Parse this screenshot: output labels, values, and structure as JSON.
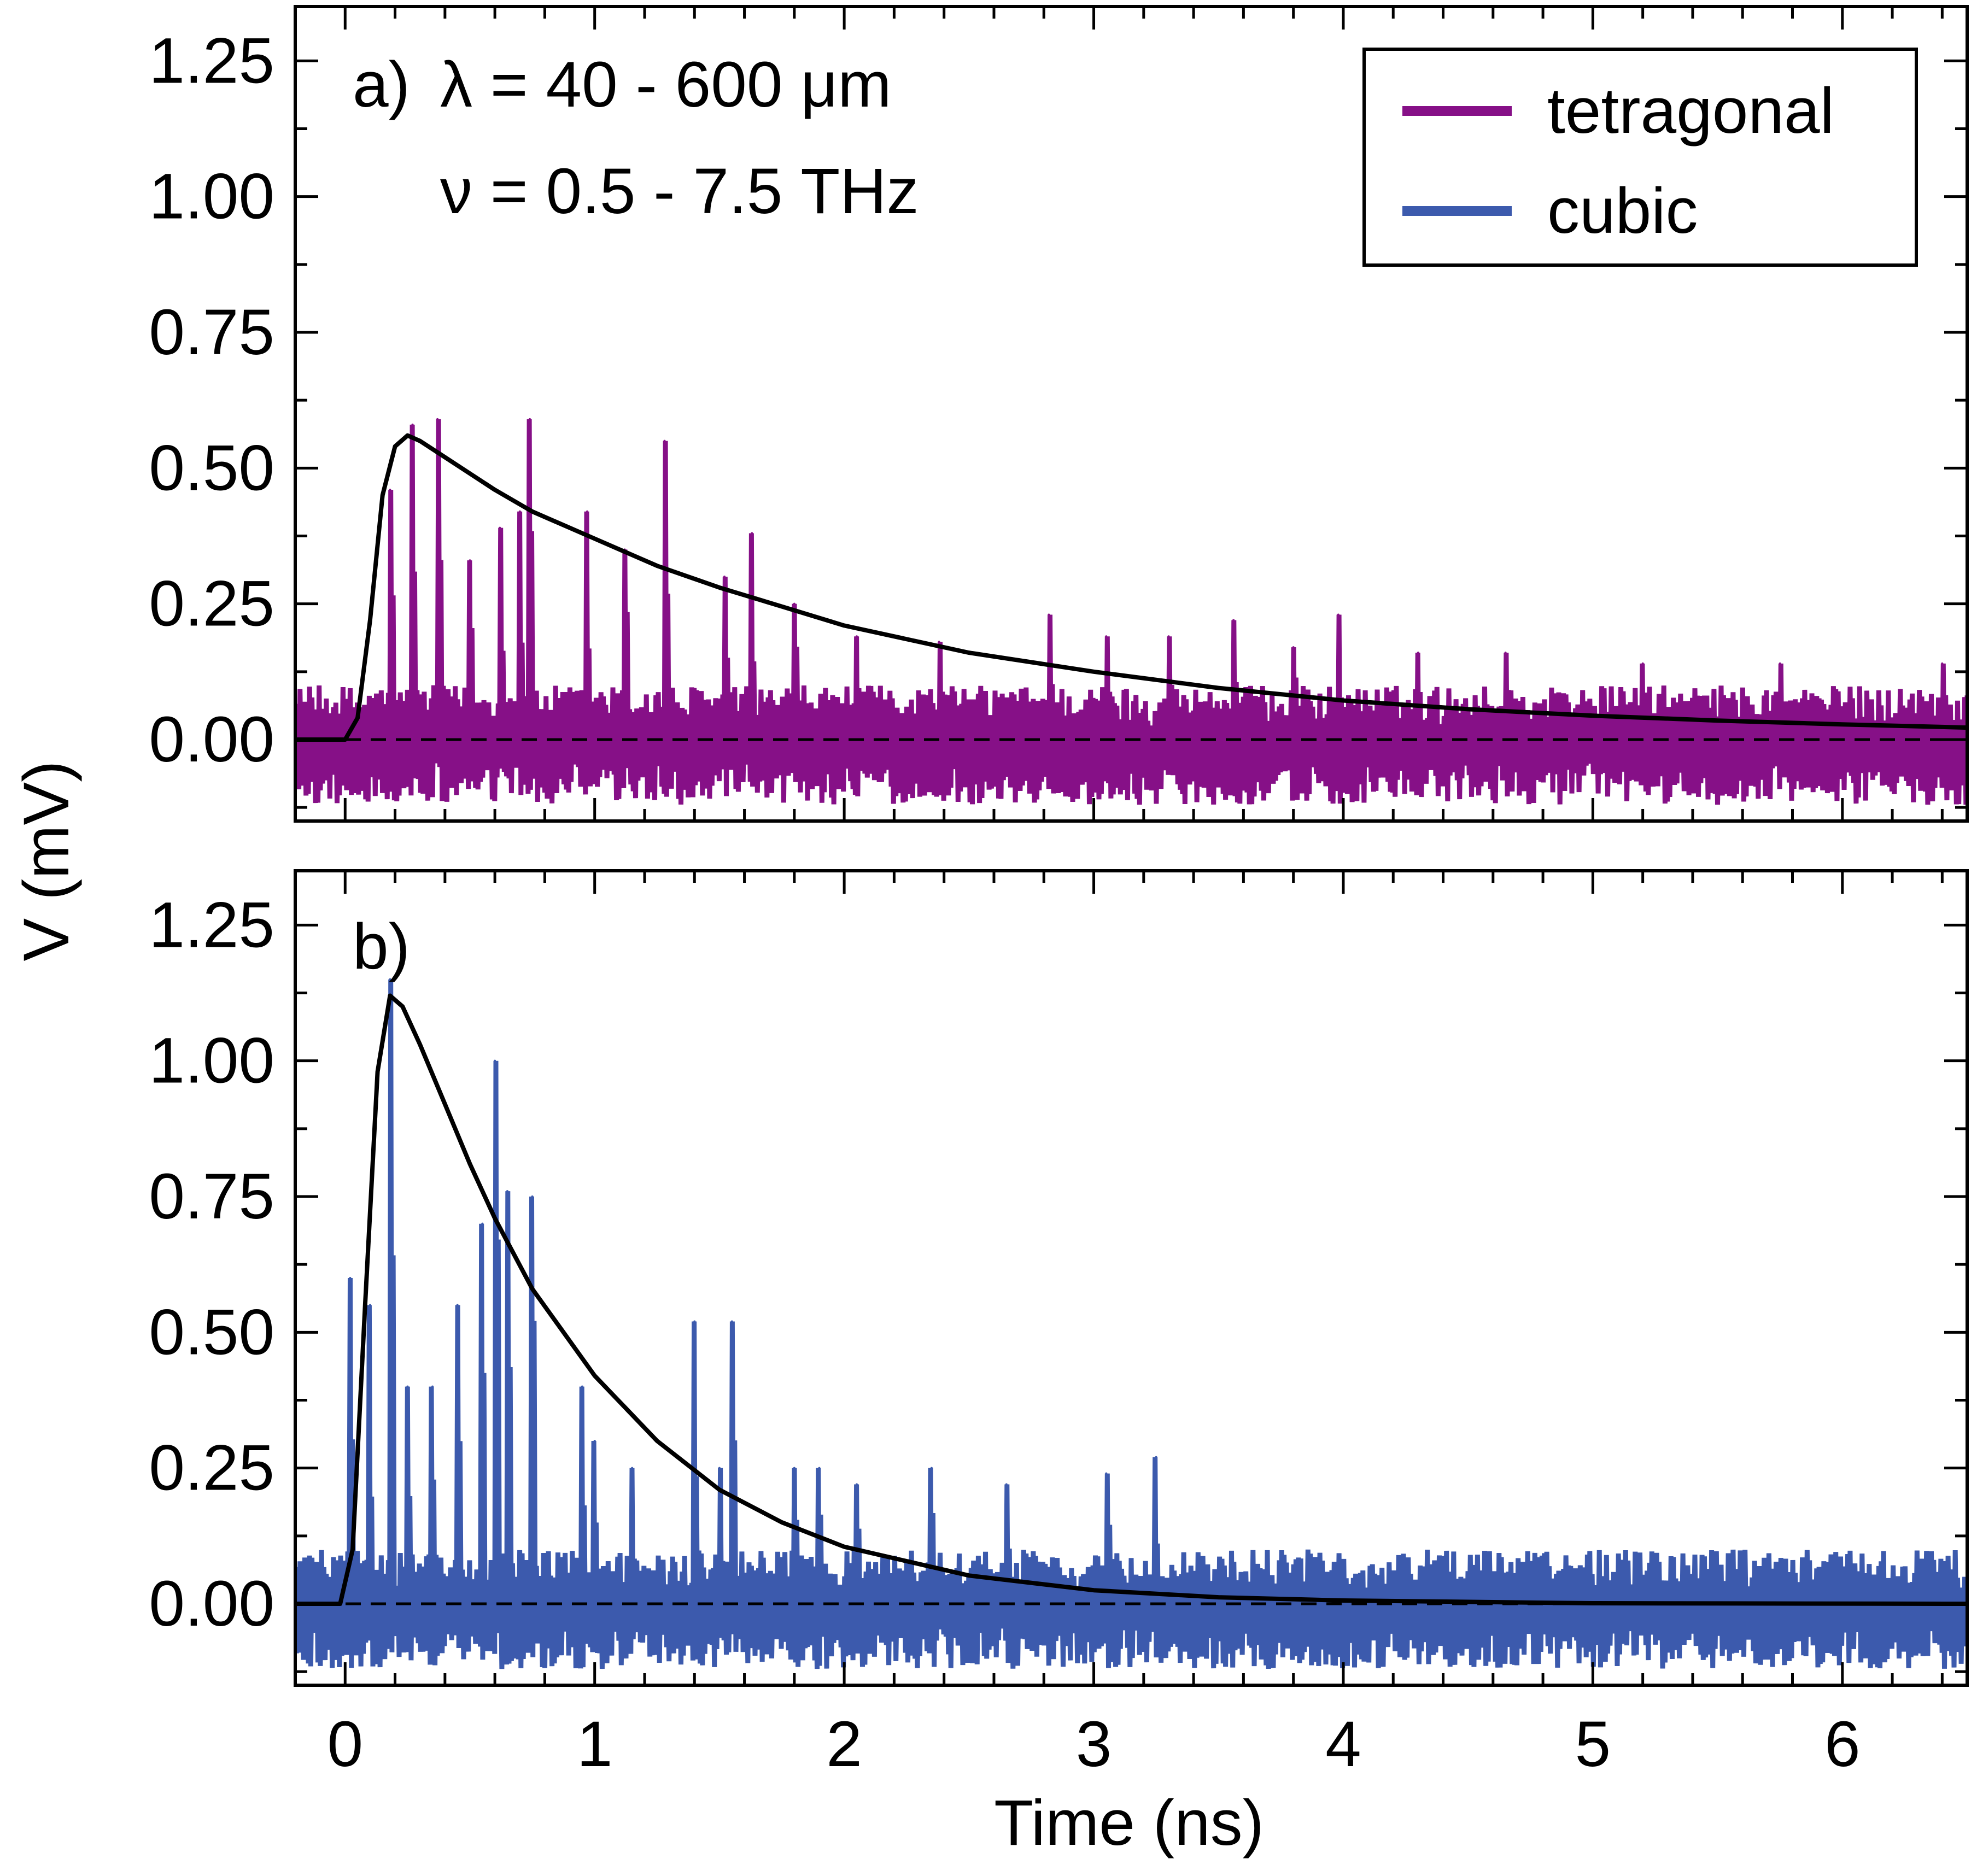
{
  "chart_data": {
    "type": "line",
    "xlabel": "Time (ns)",
    "ylabel": "V (mV)",
    "xlim": [
      -0.2,
      6.5
    ],
    "ylim": [
      -0.15,
      1.35
    ],
    "x_ticks": [
      "0",
      "1",
      "2",
      "3",
      "4",
      "5",
      "6"
    ],
    "y_ticks": [
      "1.25",
      "1.00",
      "0.75",
      "0.50",
      "0.25",
      "0.00"
    ],
    "grid": false,
    "legend": {
      "placement": "top-right of panel a",
      "entries": [
        {
          "label": "tetragonal",
          "color": "#861087"
        },
        {
          "label": "cubic",
          "color": "#3c5aad"
        }
      ]
    },
    "reference_line": {
      "y": 0.0,
      "style": "dashed",
      "color": "#000000"
    },
    "panels": [
      {
        "label": "a)",
        "annotations": [
          "λ = 40 - 600 μm",
          "ν = 0.5 - 7.5 THz"
        ],
        "series": [
          {
            "name": "tetragonal",
            "kind": "noisy-signal",
            "color": "#861087",
            "baseline_band": [
              -0.12,
              0.1
            ],
            "spikes": [
              {
                "x": 0.18,
                "y": 0.46
              },
              {
                "x": 0.27,
                "y": 0.58
              },
              {
                "x": 0.37,
                "y": 0.59
              },
              {
                "x": 0.5,
                "y": 0.33
              },
              {
                "x": 0.62,
                "y": 0.39
              },
              {
                "x": 0.7,
                "y": 0.42
              },
              {
                "x": 0.74,
                "y": 0.59
              },
              {
                "x": 0.97,
                "y": 0.42
              },
              {
                "x": 1.12,
                "y": 0.35
              },
              {
                "x": 1.28,
                "y": 0.55
              },
              {
                "x": 1.52,
                "y": 0.3
              },
              {
                "x": 1.63,
                "y": 0.38
              },
              {
                "x": 1.8,
                "y": 0.25
              },
              {
                "x": 2.05,
                "y": 0.19
              },
              {
                "x": 2.38,
                "y": 0.18
              },
              {
                "x": 2.82,
                "y": 0.23
              },
              {
                "x": 3.05,
                "y": 0.19
              },
              {
                "x": 3.3,
                "y": 0.19
              },
              {
                "x": 3.56,
                "y": 0.22
              },
              {
                "x": 3.8,
                "y": 0.17
              },
              {
                "x": 3.98,
                "y": 0.23
              },
              {
                "x": 4.3,
                "y": 0.16
              },
              {
                "x": 4.65,
                "y": 0.16
              },
              {
                "x": 5.2,
                "y": 0.14
              },
              {
                "x": 5.75,
                "y": 0.14
              },
              {
                "x": 6.4,
                "y": 0.14
              }
            ]
          },
          {
            "name": "",
            "kind": "fit",
            "color": "#000000",
            "points": [
              {
                "x": -0.2,
                "y": 0.0
              },
              {
                "x": 0.0,
                "y": 0.0
              },
              {
                "x": 0.05,
                "y": 0.04
              },
              {
                "x": 0.1,
                "y": 0.22
              },
              {
                "x": 0.15,
                "y": 0.45
              },
              {
                "x": 0.2,
                "y": 0.54
              },
              {
                "x": 0.25,
                "y": 0.56
              },
              {
                "x": 0.3,
                "y": 0.55
              },
              {
                "x": 0.4,
                "y": 0.52
              },
              {
                "x": 0.5,
                "y": 0.49
              },
              {
                "x": 0.6,
                "y": 0.46
              },
              {
                "x": 0.75,
                "y": 0.42
              },
              {
                "x": 1.0,
                "y": 0.37
              },
              {
                "x": 1.25,
                "y": 0.32
              },
              {
                "x": 1.5,
                "y": 0.28
              },
              {
                "x": 1.75,
                "y": 0.245
              },
              {
                "x": 2.0,
                "y": 0.21
              },
              {
                "x": 2.5,
                "y": 0.16
              },
              {
                "x": 3.0,
                "y": 0.125
              },
              {
                "x": 3.5,
                "y": 0.095
              },
              {
                "x": 4.0,
                "y": 0.072
              },
              {
                "x": 4.5,
                "y": 0.056
              },
              {
                "x": 5.0,
                "y": 0.044
              },
              {
                "x": 5.5,
                "y": 0.035
              },
              {
                "x": 6.0,
                "y": 0.028
              },
              {
                "x": 6.5,
                "y": 0.022
              }
            ]
          }
        ]
      },
      {
        "label": "b)",
        "annotations": [],
        "series": [
          {
            "name": "cubic",
            "kind": "noisy-signal",
            "color": "#3c5aad",
            "baseline_band": [
              -0.12,
              0.1
            ],
            "spikes": [
              {
                "x": 0.02,
                "y": 0.6
              },
              {
                "x": 0.1,
                "y": 0.55
              },
              {
                "x": 0.18,
                "y": 1.15
              },
              {
                "x": 0.25,
                "y": 0.4
              },
              {
                "x": 0.35,
                "y": 0.4
              },
              {
                "x": 0.45,
                "y": 0.55
              },
              {
                "x": 0.55,
                "y": 0.7
              },
              {
                "x": 0.6,
                "y": 1.0
              },
              {
                "x": 0.65,
                "y": 0.76
              },
              {
                "x": 0.75,
                "y": 0.75
              },
              {
                "x": 0.95,
                "y": 0.4
              },
              {
                "x": 1.0,
                "y": 0.3
              },
              {
                "x": 1.15,
                "y": 0.25
              },
              {
                "x": 1.4,
                "y": 0.52
              },
              {
                "x": 1.5,
                "y": 0.25
              },
              {
                "x": 1.55,
                "y": 0.52
              },
              {
                "x": 1.8,
                "y": 0.25
              },
              {
                "x": 1.9,
                "y": 0.25
              },
              {
                "x": 2.05,
                "y": 0.22
              },
              {
                "x": 2.35,
                "y": 0.25
              },
              {
                "x": 2.65,
                "y": 0.22
              },
              {
                "x": 3.05,
                "y": 0.24
              },
              {
                "x": 3.25,
                "y": 0.27
              }
            ]
          },
          {
            "name": "",
            "kind": "fit",
            "color": "#000000",
            "points": [
              {
                "x": -0.2,
                "y": 0.0
              },
              {
                "x": -0.02,
                "y": 0.0
              },
              {
                "x": 0.03,
                "y": 0.1
              },
              {
                "x": 0.08,
                "y": 0.55
              },
              {
                "x": 0.13,
                "y": 0.98
              },
              {
                "x": 0.18,
                "y": 1.12
              },
              {
                "x": 0.23,
                "y": 1.1
              },
              {
                "x": 0.3,
                "y": 1.03
              },
              {
                "x": 0.4,
                "y": 0.92
              },
              {
                "x": 0.5,
                "y": 0.81
              },
              {
                "x": 0.6,
                "y": 0.71
              },
              {
                "x": 0.75,
                "y": 0.58
              },
              {
                "x": 1.0,
                "y": 0.42
              },
              {
                "x": 1.25,
                "y": 0.3
              },
              {
                "x": 1.5,
                "y": 0.21
              },
              {
                "x": 1.75,
                "y": 0.15
              },
              {
                "x": 2.0,
                "y": 0.105
              },
              {
                "x": 2.5,
                "y": 0.052
              },
              {
                "x": 3.0,
                "y": 0.025
              },
              {
                "x": 3.5,
                "y": 0.012
              },
              {
                "x": 4.0,
                "y": 0.006
              },
              {
                "x": 5.0,
                "y": 0.001
              },
              {
                "x": 6.5,
                "y": 0.0
              }
            ]
          }
        ]
      }
    ]
  }
}
